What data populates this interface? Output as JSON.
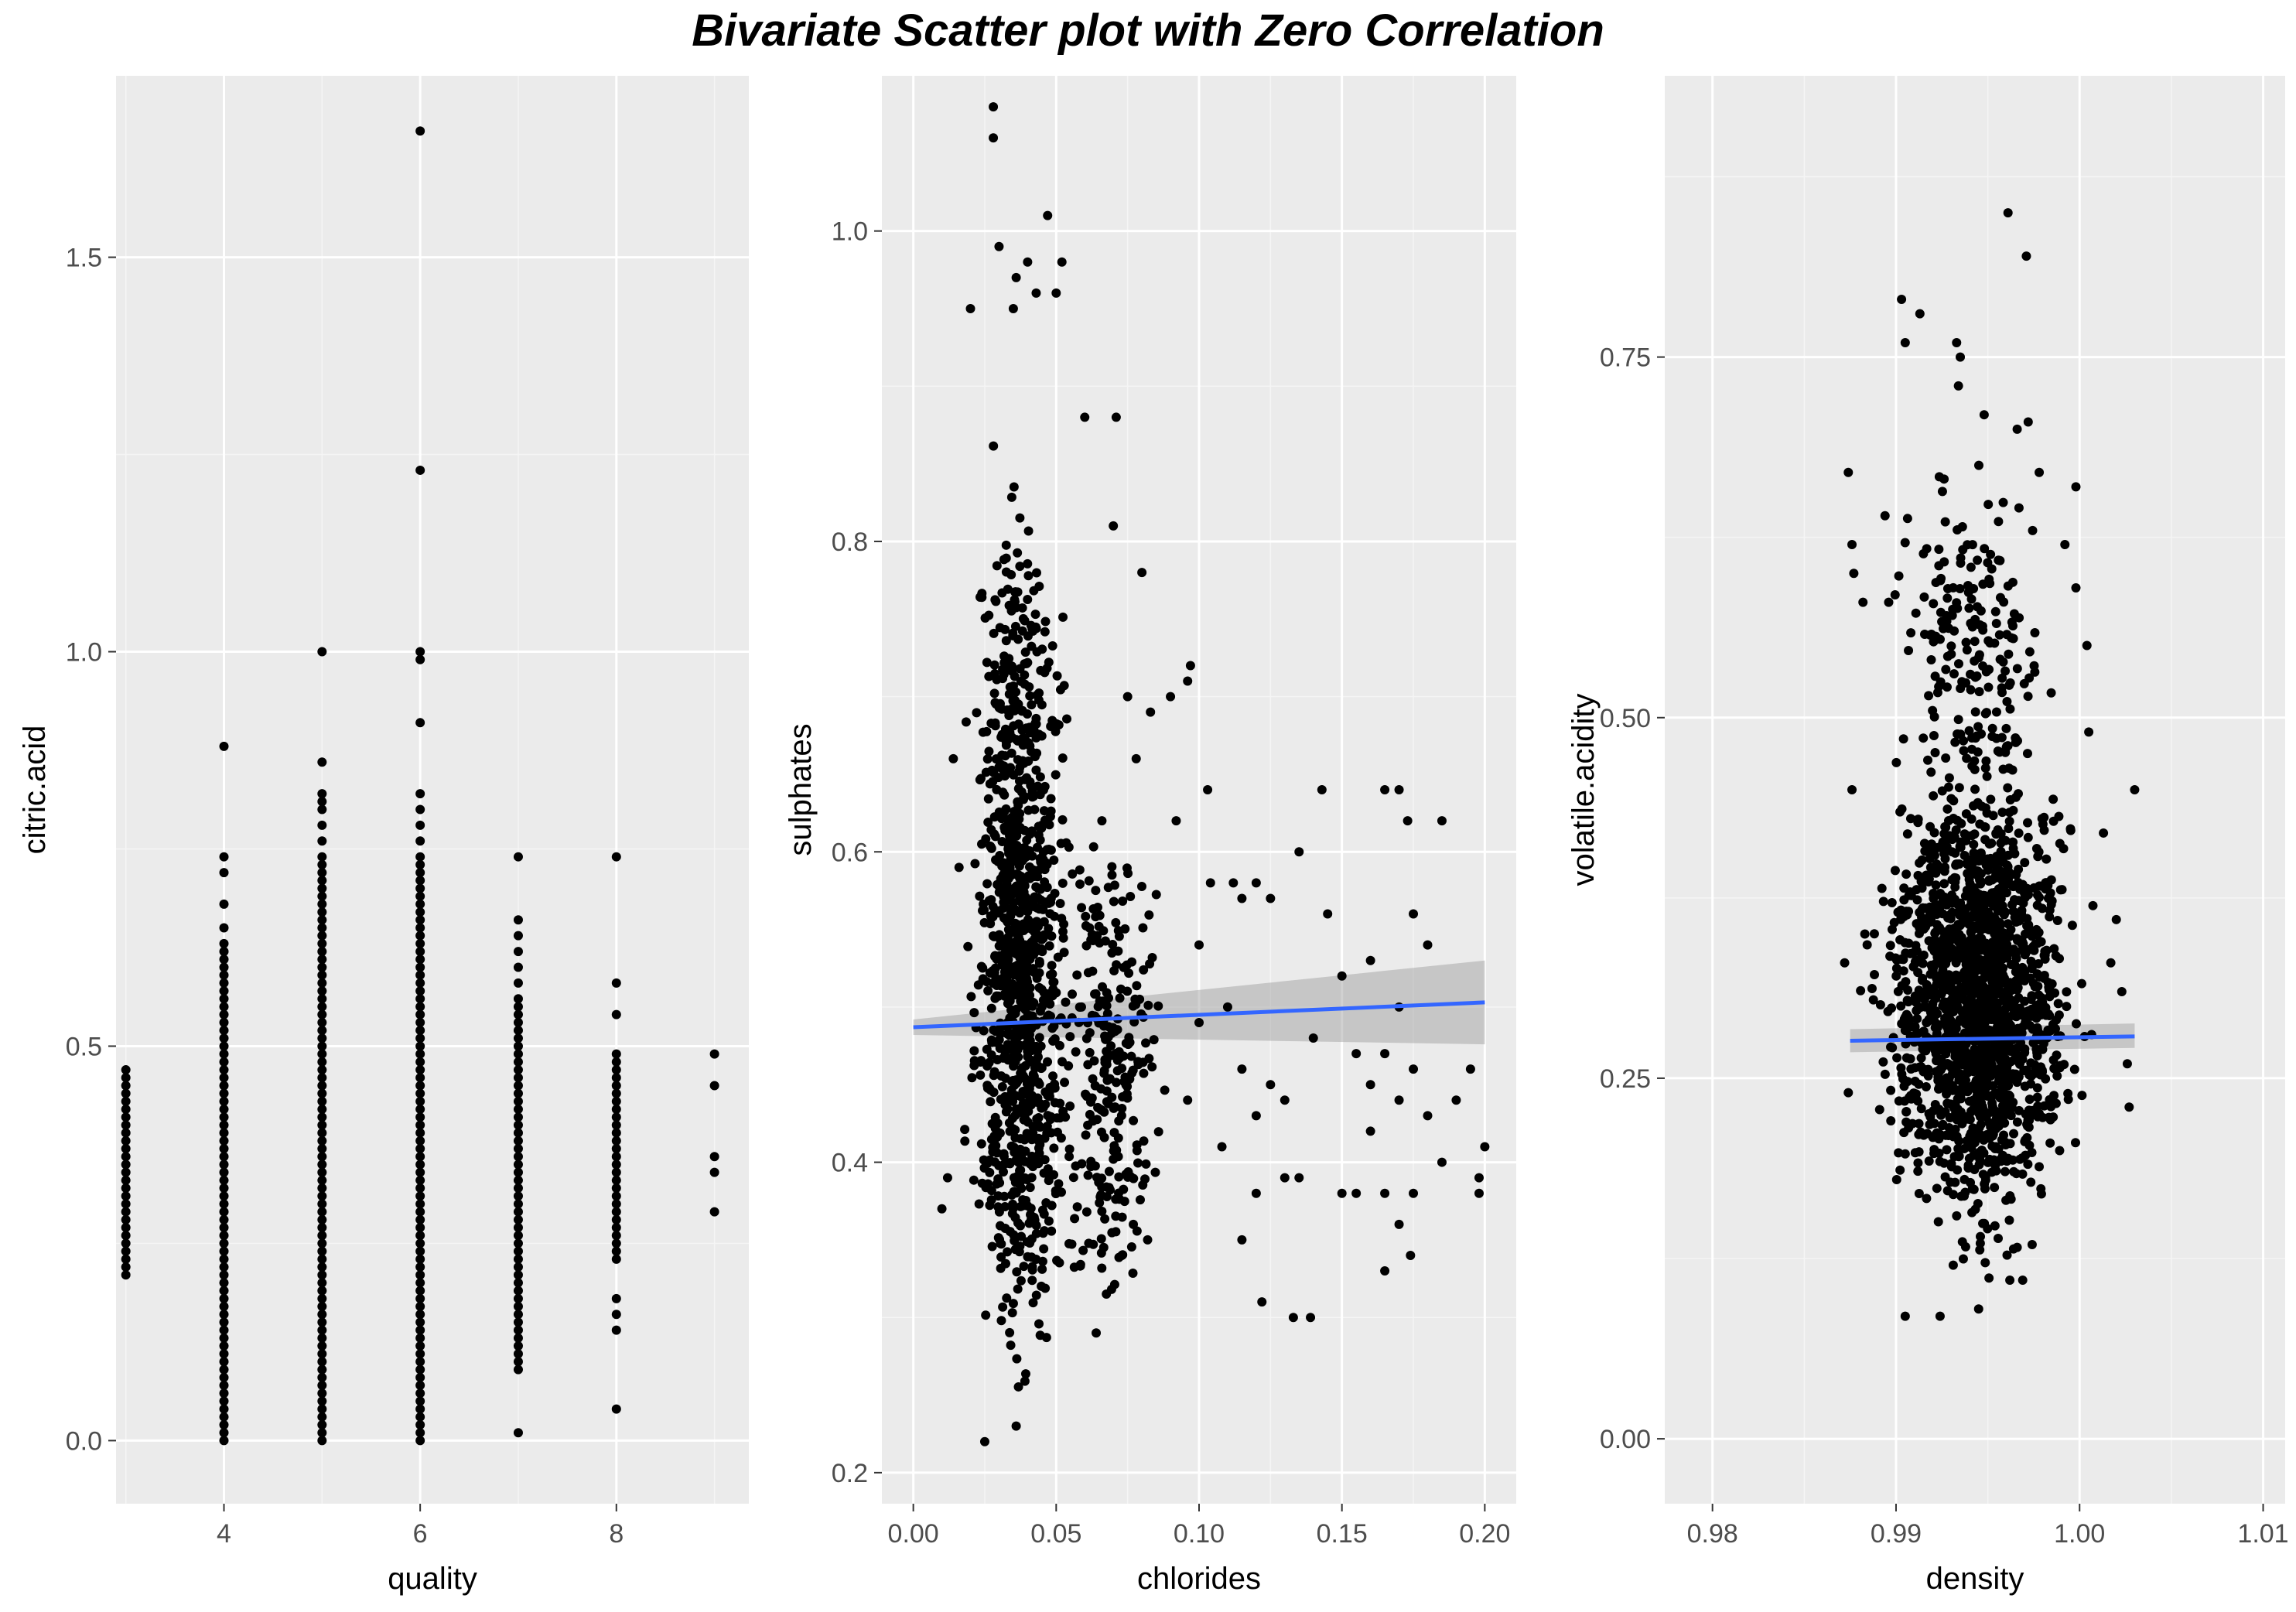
{
  "figure": {
    "title": "Bivariate Scatter plot with Zero Correlation"
  },
  "colors": {
    "panel_background": "#ebebeb",
    "grid_major": "#ffffff",
    "grid_minor": "#f5f5f5",
    "point": "#000000",
    "fit_line": "#3366ff",
    "confidence_band": "#999999",
    "tick_text": "#4d4d4d",
    "axis_title": "#000000"
  },
  "chart_data": [
    {
      "type": "scatter",
      "title": "",
      "xlabel": "quality",
      "ylabel": "citric.acid",
      "xlim": [
        2.9,
        9.35
      ],
      "ylim": [
        -0.08,
        1.73
      ],
      "xticks": [
        4,
        6,
        8
      ],
      "xtick_labels": [
        "4",
        "6",
        "8"
      ],
      "yticks": [
        0.0,
        0.5,
        1.0,
        1.5
      ],
      "ytick_labels": [
        "0.0",
        "0.5",
        "1.0",
        "1.5"
      ],
      "xminor": [
        3,
        5,
        7,
        9
      ],
      "yminor": [
        0.25,
        0.75,
        1.25
      ],
      "grid": true,
      "points": {
        "discrete_x": true,
        "columns": [
          {
            "x": 3,
            "ymin": 0.21,
            "ymax": 0.47,
            "step": 0.01,
            "extras": []
          },
          {
            "x": 4,
            "ymin": 0.0,
            "ymax": 0.63,
            "step": 0.01,
            "extras": [
              0.65,
              0.68,
              0.72,
              0.74,
              0.88
            ]
          },
          {
            "x": 5,
            "ymin": 0.0,
            "ymax": 0.74,
            "step": 0.01,
            "extras": [
              0.76,
              0.78,
              0.8,
              0.81,
              0.82,
              0.86,
              1.0
            ]
          },
          {
            "x": 6,
            "ymin": 0.0,
            "ymax": 0.74,
            "step": 0.01,
            "extras": [
              0.76,
              0.78,
              0.8,
              0.82,
              0.91,
              0.99,
              1.0,
              1.23,
              1.66
            ]
          },
          {
            "x": 7,
            "ymin": 0.09,
            "ymax": 0.56,
            "step": 0.01,
            "extras": [
              0.01,
              0.58,
              0.6,
              0.62,
              0.64,
              0.66,
              0.74
            ]
          },
          {
            "x": 8,
            "ymin": 0.23,
            "ymax": 0.49,
            "step": 0.01,
            "extras": [
              0.04,
              0.14,
              0.16,
              0.18,
              0.54,
              0.58,
              0.74
            ]
          },
          {
            "x": 9,
            "ymin": 0.29,
            "ymax": 0.29,
            "step": 0.01,
            "extras": [
              0.34,
              0.36,
              0.45,
              0.49
            ]
          }
        ]
      },
      "smooth": null
    },
    {
      "type": "scatter",
      "title": "",
      "xlabel": "chlorides",
      "ylabel": "sulphates",
      "xlim": [
        -0.011,
        0.211
      ],
      "ylim": [
        0.18,
        1.1
      ],
      "xticks": [
        0.0,
        0.05,
        0.1,
        0.15,
        0.2
      ],
      "xtick_labels": [
        "0.00",
        "0.05",
        "0.10",
        "0.15",
        "0.20"
      ],
      "yticks": [
        0.2,
        0.4,
        0.6,
        0.8,
        1.0
      ],
      "ytick_labels": [
        "0.2",
        "0.4",
        "0.6",
        "0.8",
        "1.0"
      ],
      "xminor": [
        0.025,
        0.075,
        0.125,
        0.175
      ],
      "yminor": [
        0.3,
        0.5,
        0.7,
        0.9
      ],
      "grid": true,
      "points": {
        "discrete_x": false,
        "cloud": [
          {
            "xmin": 0.015,
            "xmax": 0.06,
            "ymin": 0.27,
            "ymax": 0.8,
            "n": 900
          },
          {
            "xmin": 0.02,
            "xmax": 0.05,
            "ymin": 0.23,
            "ymax": 0.9,
            "n": 200
          },
          {
            "xmin": 0.05,
            "xmax": 0.09,
            "ymin": 0.3,
            "ymax": 0.62,
            "n": 250
          }
        ],
        "extras": [
          [
            0.028,
            1.08
          ],
          [
            0.028,
            1.06
          ],
          [
            0.047,
            1.01
          ],
          [
            0.03,
            0.99
          ],
          [
            0.04,
            0.98
          ],
          [
            0.052,
            0.98
          ],
          [
            0.036,
            0.97
          ],
          [
            0.02,
            0.95
          ],
          [
            0.035,
            0.95
          ],
          [
            0.043,
            0.96
          ],
          [
            0.05,
            0.96
          ],
          [
            0.06,
            0.88
          ],
          [
            0.071,
            0.88
          ],
          [
            0.07,
            0.81
          ],
          [
            0.08,
            0.78
          ],
          [
            0.097,
            0.72
          ],
          [
            0.096,
            0.71
          ],
          [
            0.09,
            0.7
          ],
          [
            0.075,
            0.7
          ],
          [
            0.083,
            0.69
          ],
          [
            0.078,
            0.66
          ],
          [
            0.092,
            0.62
          ],
          [
            0.103,
            0.64
          ],
          [
            0.1,
            0.54
          ],
          [
            0.104,
            0.58
          ],
          [
            0.112,
            0.58
          ],
          [
            0.115,
            0.57
          ],
          [
            0.12,
            0.58
          ],
          [
            0.125,
            0.57
          ],
          [
            0.135,
            0.6
          ],
          [
            0.143,
            0.64
          ],
          [
            0.15,
            0.52
          ],
          [
            0.145,
            0.56
          ],
          [
            0.165,
            0.64
          ],
          [
            0.17,
            0.64
          ],
          [
            0.173,
            0.62
          ],
          [
            0.185,
            0.62
          ],
          [
            0.175,
            0.56
          ],
          [
            0.18,
            0.54
          ],
          [
            0.16,
            0.53
          ],
          [
            0.17,
            0.5
          ],
          [
            0.11,
            0.5
          ],
          [
            0.115,
            0.46
          ],
          [
            0.12,
            0.43
          ],
          [
            0.125,
            0.45
          ],
          [
            0.13,
            0.44
          ],
          [
            0.14,
            0.48
          ],
          [
            0.155,
            0.47
          ],
          [
            0.16,
            0.45
          ],
          [
            0.165,
            0.47
          ],
          [
            0.17,
            0.44
          ],
          [
            0.175,
            0.46
          ],
          [
            0.18,
            0.43
          ],
          [
            0.19,
            0.44
          ],
          [
            0.195,
            0.46
          ],
          [
            0.16,
            0.42
          ],
          [
            0.165,
            0.38
          ],
          [
            0.175,
            0.38
          ],
          [
            0.185,
            0.4
          ],
          [
            0.198,
            0.39
          ],
          [
            0.2,
            0.41
          ],
          [
            0.198,
            0.38
          ],
          [
            0.13,
            0.39
          ],
          [
            0.135,
            0.39
          ],
          [
            0.12,
            0.38
          ],
          [
            0.115,
            0.35
          ],
          [
            0.122,
            0.31
          ],
          [
            0.133,
            0.3
          ],
          [
            0.139,
            0.3
          ],
          [
            0.15,
            0.38
          ],
          [
            0.155,
            0.38
          ],
          [
            0.17,
            0.36
          ],
          [
            0.174,
            0.34
          ],
          [
            0.165,
            0.33
          ],
          [
            0.108,
            0.41
          ],
          [
            0.096,
            0.44
          ],
          [
            0.1,
            0.49
          ],
          [
            0.025,
            0.22
          ],
          [
            0.036,
            0.23
          ],
          [
            0.01,
            0.37
          ],
          [
            0.012,
            0.39
          ],
          [
            0.014,
            0.66
          ],
          [
            0.016,
            0.59
          ],
          [
            0.066,
            0.62
          ],
          [
            0.064,
            0.29
          ],
          [
            0.073,
            0.34
          ],
          [
            0.077,
            0.36
          ],
          [
            0.082,
            0.35
          ]
        ]
      },
      "smooth": {
        "x": [
          0.0,
          0.2
        ],
        "y": [
          0.487,
          0.503
        ],
        "band_lower": [
          0.482,
          0.476
        ],
        "band_upper": [
          0.492,
          0.53
        ]
      }
    },
    {
      "type": "scatter",
      "title": "",
      "xlabel": "density",
      "ylabel": "volatile.acidity",
      "xlim": [
        0.9774,
        1.0112
      ],
      "ylim": [
        -0.045,
        0.945
      ],
      "xticks": [
        0.98,
        0.99,
        1.0,
        1.01
      ],
      "xtick_labels": [
        "0.98",
        "0.99",
        "1.00",
        "1.01"
      ],
      "yticks": [
        0.0,
        0.25,
        0.5,
        0.75
      ],
      "ytick_labels": [
        "0.00",
        "0.25",
        "0.50",
        "0.75"
      ],
      "xminor": [
        0.985,
        0.995,
        1.005
      ],
      "yminor": [
        0.125,
        0.375,
        0.625,
        0.875
      ],
      "grid": true,
      "points": {
        "discrete_x": false,
        "cloud": [
          {
            "xmin": 0.9875,
            "xmax": 1.0015,
            "ymin": 0.16,
            "ymax": 0.45,
            "n": 1400
          },
          {
            "xmin": 0.989,
            "xmax": 0.9995,
            "ymin": 0.1,
            "ymax": 0.56,
            "n": 400
          },
          {
            "xmin": 0.9885,
            "xmax": 1.0,
            "ymin": 0.45,
            "ymax": 0.68,
            "n": 160
          }
        ],
        "extras": [
          [
            0.9961,
            0.85
          ],
          [
            0.9971,
            0.82
          ],
          [
            0.9903,
            0.79
          ],
          [
            0.9913,
            0.78
          ],
          [
            0.9905,
            0.76
          ],
          [
            0.9933,
            0.76
          ],
          [
            0.9935,
            0.75
          ],
          [
            0.9934,
            0.73
          ],
          [
            0.9948,
            0.71
          ],
          [
            0.9966,
            0.7
          ],
          [
            0.9972,
            0.705
          ],
          [
            0.9978,
            0.67
          ],
          [
            0.9998,
            0.66
          ],
          [
            0.9874,
            0.67
          ],
          [
            0.9894,
            0.64
          ],
          [
            0.9992,
            0.62
          ],
          [
            0.9998,
            0.59
          ],
          [
            1.0004,
            0.55
          ],
          [
            1.0005,
            0.49
          ],
          [
            1.003,
            0.45
          ],
          [
            1.0017,
            0.33
          ],
          [
            1.0023,
            0.31
          ],
          [
            1.0026,
            0.26
          ],
          [
            1.0027,
            0.23
          ],
          [
            0.9874,
            0.24
          ],
          [
            0.9872,
            0.33
          ],
          [
            0.9876,
            0.62
          ],
          [
            0.9877,
            0.6
          ],
          [
            0.9924,
            0.085
          ],
          [
            0.9945,
            0.09
          ],
          [
            0.9905,
            0.085
          ],
          [
            0.9962,
            0.11
          ],
          [
            0.9969,
            0.11
          ],
          [
            0.9882,
            0.58
          ],
          [
            0.9896,
            0.58
          ],
          [
            1.002,
            0.36
          ],
          [
            1.0013,
            0.42
          ],
          [
            0.9876,
            0.45
          ],
          [
            0.9883,
            0.35
          ]
        ]
      },
      "smooth": {
        "x": [
          0.9875,
          1.003
        ],
        "y": [
          0.276,
          0.279
        ],
        "band_lower": [
          0.268,
          0.271
        ],
        "band_upper": [
          0.284,
          0.288
        ]
      }
    }
  ]
}
